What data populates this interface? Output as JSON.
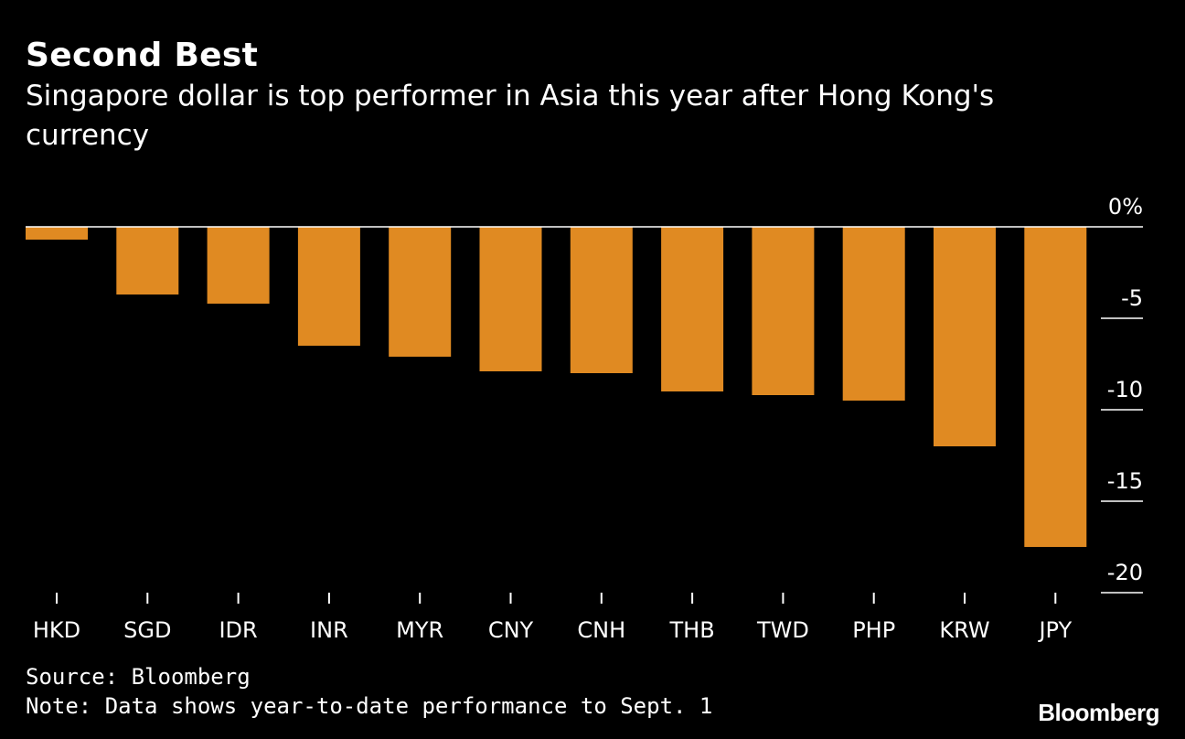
{
  "header": {
    "title": "Second Best",
    "subtitle": "Singapore dollar is top performer in Asia this year after Hong Kong's currency"
  },
  "footer": {
    "source": "Source: Bloomberg",
    "note": "Note: Data shows year-to-date performance to Sept. 1",
    "brand": "Bloomberg"
  },
  "colors": {
    "background": "#000000",
    "bar": "#E08A22",
    "text": "#FFFFFF",
    "zero_line": "#FFFFFF"
  },
  "chart_data": {
    "type": "bar",
    "title": "Second Best",
    "subtitle": "Singapore dollar is top performer in Asia this year after Hong Kong's currency",
    "categories": [
      "HKD",
      "SGD",
      "IDR",
      "INR",
      "MYR",
      "CNY",
      "CNH",
      "THB",
      "TWD",
      "PHP",
      "KRW",
      "JPY"
    ],
    "values": [
      -0.7,
      -3.7,
      -4.2,
      -6.5,
      -7.1,
      -7.9,
      -8.0,
      -9.0,
      -9.2,
      -9.5,
      -12.0,
      -17.5
    ],
    "ylim": [
      -20,
      0
    ],
    "yticks": [
      0,
      -5,
      -10,
      -15,
      -20
    ],
    "ytick_labels": [
      "0%",
      "-5",
      "-10",
      "-15",
      "-20"
    ],
    "y_axis_position": "right",
    "grid": false,
    "xlabel": "",
    "ylabel": ""
  }
}
